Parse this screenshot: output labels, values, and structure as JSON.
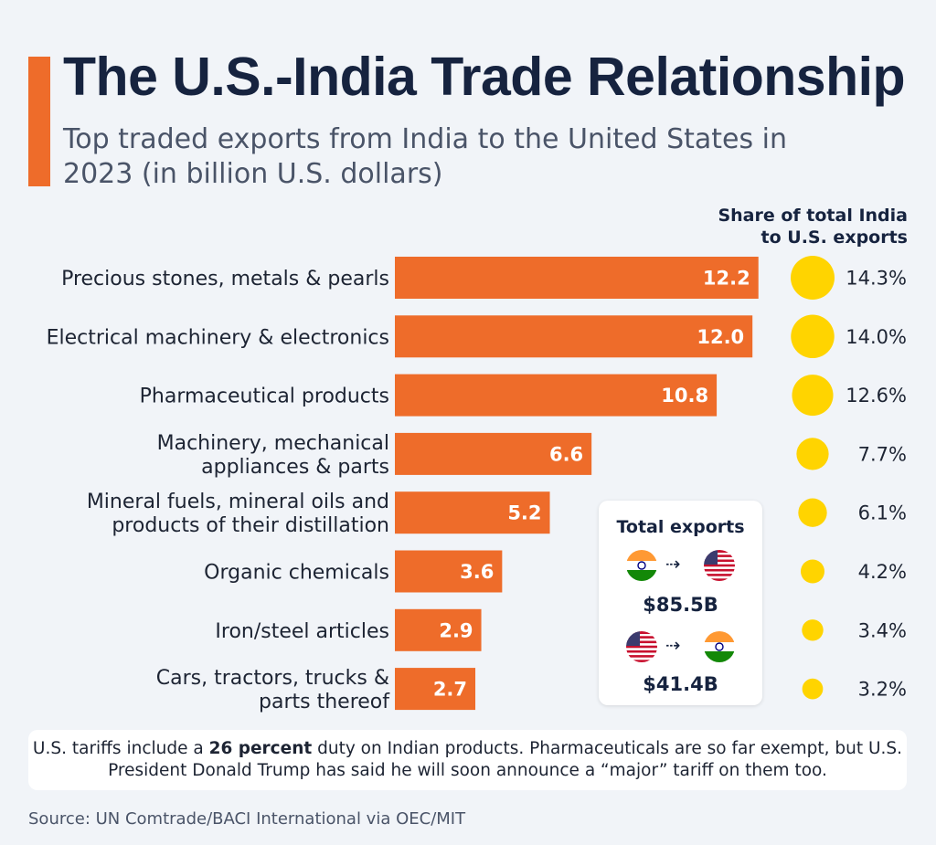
{
  "title": "The U.S.-India Trade Relationship",
  "subtitle": "Top traded exports from India to the United States in 2023 (in billion U.S. dollars)",
  "share_header_line1": "Share of total India",
  "share_header_line2": "to U.S. exports",
  "colors": {
    "accent": "#ee6c2a",
    "bar": "#ee6c2a",
    "bubble": "#ffd400",
    "title": "#16233f"
  },
  "chart_data": {
    "type": "bar",
    "orientation": "horizontal",
    "categories": [
      [
        "Precious stones, metals & pearls"
      ],
      [
        "Electrical machinery & electronics"
      ],
      [
        "Pharmaceutical products"
      ],
      [
        "Machinery, mechanical",
        "appliances & parts"
      ],
      [
        "Mineral fuels, mineral oils and",
        "products of their distillation"
      ],
      [
        "Organic chemicals"
      ],
      [
        "Iron/steel articles"
      ],
      [
        "Cars, tractors, trucks &",
        "parts thereof"
      ]
    ],
    "values": [
      12.2,
      12.0,
      10.8,
      6.6,
      5.2,
      3.6,
      2.9,
      2.7
    ],
    "value_labels": [
      "12.2",
      "12.0",
      "10.8",
      "6.6",
      "5.2",
      "3.6",
      "2.9",
      "2.7"
    ],
    "shares": [
      14.3,
      14.0,
      12.6,
      7.7,
      6.1,
      4.2,
      3.4,
      3.2
    ],
    "share_labels": [
      "14.3%",
      "14.0%",
      "12.6%",
      "7.7%",
      "6.1%",
      "4.2%",
      "3.4%",
      "3.2%"
    ],
    "title": "The U.S.-India Trade Relationship",
    "xlabel": "",
    "ylabel": ""
  },
  "totals": {
    "title": "Total exports",
    "india_to_us": "$85.5B",
    "us_to_india": "$41.4B",
    "arrow": "⇢"
  },
  "note": {
    "pre": "U.S. tariffs include a ",
    "bold": "26 percent",
    "post": " duty on Indian products. Pharmaceuticals are so far exempt, but U.S. President Donald Trump has said he will soon announce a “major” tariff on them too."
  },
  "source": "Source: UN Comtrade/BACI International via OEC/MIT"
}
